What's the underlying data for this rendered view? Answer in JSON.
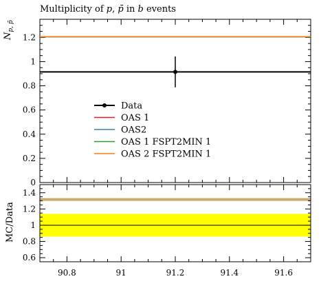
{
  "chart_data": [
    {
      "type": "scatter",
      "title": "Multiplicity of p, p̄ in b events",
      "title_parts": {
        "prefix": "Multiplicity of ",
        "p1": "p",
        "sep": ", ",
        "p2": "p̄",
        "mid": " in ",
        "b": "b",
        "suffix": " events"
      },
      "ylabel": "N_{p, p̄}",
      "ylabel_parts": {
        "base": "N",
        "sub": "p, p̄"
      },
      "xlim": [
        90.7,
        91.7
      ],
      "ylim": [
        0,
        1.35
      ],
      "yticks": [
        0,
        0.2,
        0.4,
        0.6,
        0.8,
        1,
        1.2
      ],
      "ytick_labels": [
        "0",
        "0.2",
        "0.4",
        "0.6",
        "0.8",
        "1",
        "1.2"
      ],
      "legend_position": "center-left",
      "series": [
        {
          "name": "Data",
          "kind": "errorbar",
          "color": "#000000",
          "x": [
            91.2
          ],
          "y": [
            0.915
          ],
          "yerr": [
            0.128
          ]
        },
        {
          "name": "OAS 1",
          "kind": "hline",
          "color": "#e41a1c",
          "y": 1.205
        },
        {
          "name": "OAS2",
          "kind": "hline",
          "color": "#377eb8",
          "y": 1.205
        },
        {
          "name": "OAS 1 FSPT2MIN 1",
          "kind": "hline",
          "color": "#2ca02c",
          "y": 1.205
        },
        {
          "name": "OAS 2 FSPT2MIN 1",
          "kind": "hline",
          "color": "#ff7f0e",
          "y": 1.205
        }
      ],
      "data_hline": 0.915
    },
    {
      "type": "line",
      "ylabel": "MC/Data",
      "xlim": [
        90.7,
        91.7
      ],
      "ylim": [
        0.55,
        1.5
      ],
      "xticks": [
        90.8,
        91,
        91.2,
        91.4,
        91.6
      ],
      "xtick_labels": [
        "90.8",
        "91",
        "91.2",
        "91.4",
        "91.6"
      ],
      "yticks": [
        0.6,
        0.8,
        1,
        1.2,
        1.4
      ],
      "ytick_labels": [
        "0.6",
        "0.8",
        "1",
        "1.2",
        "1.4"
      ],
      "band": {
        "color": "#ffff00",
        "low": 0.86,
        "high": 1.14
      },
      "reference": 1.0,
      "ratio": 1.317,
      "ratio_color": "#c8aa6e"
    }
  ]
}
